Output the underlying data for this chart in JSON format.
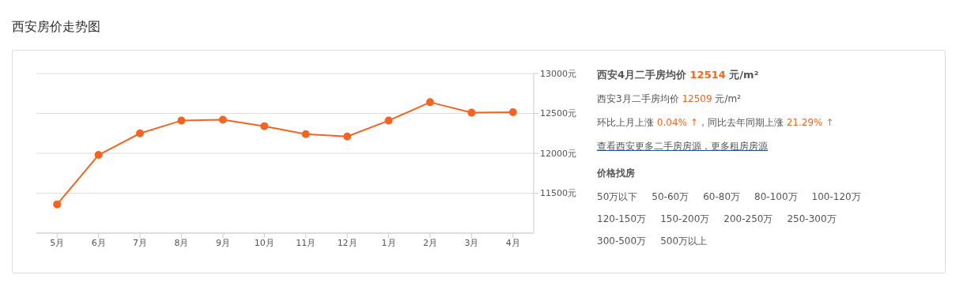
{
  "chart_data": {
    "type": "line",
    "title": "西安房价走势图",
    "categories": [
      "5月",
      "6月",
      "7月",
      "8月",
      "9月",
      "10月",
      "11月",
      "12月",
      "1月",
      "2月",
      "3月",
      "4月"
    ],
    "series": [
      {
        "color": "#f26522",
        "values": [
          11360,
          11980,
          12250,
          12410,
          12420,
          12340,
          12240,
          12210,
          12410,
          12640,
          12509,
          12514
        ]
      }
    ],
    "ylim": [
      11000,
      13000
    ],
    "yticks": [
      {
        "value": 11500,
        "label": "11500元"
      },
      {
        "value": 12000,
        "label": "12000元"
      },
      {
        "value": 12500,
        "label": "12500元"
      },
      {
        "value": 13000,
        "label": "13000元"
      }
    ],
    "grid": "y",
    "marker": "circle",
    "line_style": "solid",
    "legend": false,
    "annotations": [
      "西安4月二手房均价 12514 元/m²",
      "西安3月二手房均价 12509 元/m²",
      "环比上月上涨 0.04% ↑，同比去年同期上涨 21.29% ↑",
      "查看西安更多二手房房源，更多租房房源",
      "价格找房",
      "50万以下",
      "50-60万",
      "60-80万",
      "80-100万",
      "100-120万",
      "120-150万",
      "150-200万",
      "200-250万",
      "250-300万",
      "300-500万",
      "500万以上"
    ]
  }
}
